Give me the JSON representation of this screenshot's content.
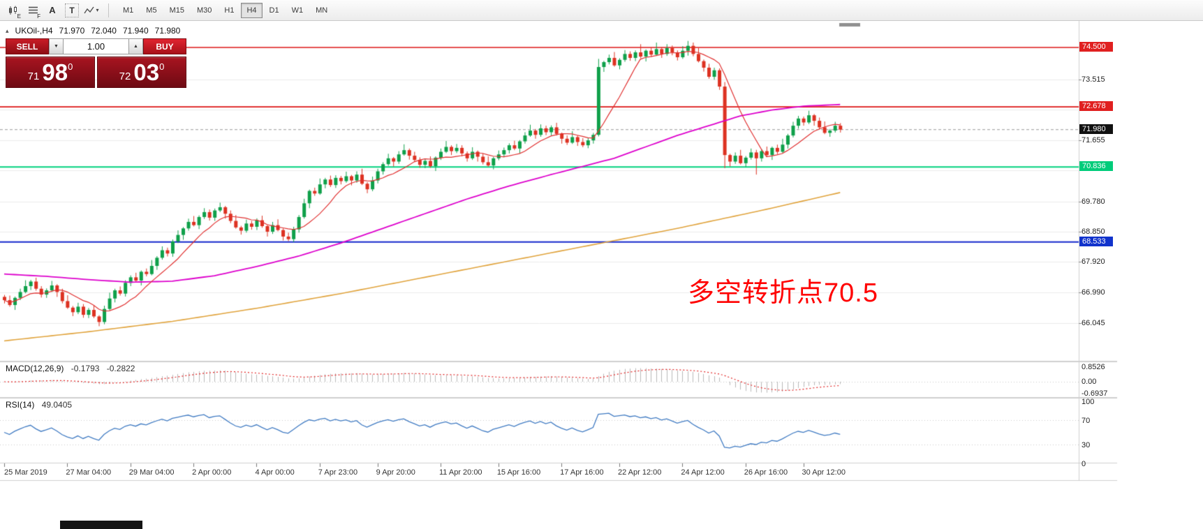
{
  "toolbar": {
    "timeframes": [
      "M1",
      "M5",
      "M15",
      "M30",
      "H1",
      "H4",
      "D1",
      "W1",
      "MN"
    ],
    "active_timeframe": "H4",
    "tools": {
      "tool1_sub": "E",
      "tool2_sub": "F",
      "tool3_label": "A",
      "tool4_label": "T",
      "tool5_caret": "▾"
    }
  },
  "symbol": {
    "prefix_icon": "▴",
    "name": "UKOil-,H4",
    "open": "71.970",
    "high": "72.040",
    "low": "71.940",
    "close": "71.980"
  },
  "trade_panel": {
    "sell_label": "SELL",
    "buy_label": "BUY",
    "volume": "1.00",
    "dropdown_icon": "▼",
    "spin_up_icon": "▲",
    "bid": {
      "whole": "71",
      "pips": "98",
      "pt": "0"
    },
    "ask": {
      "whole": "72",
      "pips": "03",
      "pt": "0"
    }
  },
  "chart_data": {
    "type": "candlestick",
    "symbol": "UKOil-",
    "timeframe": "H4",
    "first_open": 66.85,
    "closes": [
      66.75,
      66.6,
      66.82,
      67.0,
      67.18,
      67.32,
      67.1,
      66.92,
      67.05,
      67.2,
      67.0,
      66.72,
      66.52,
      66.38,
      66.55,
      66.3,
      66.45,
      66.25,
      66.08,
      66.48,
      66.8,
      67.05,
      66.95,
      67.28,
      67.45,
      67.35,
      67.62,
      67.55,
      67.8,
      68.05,
      68.28,
      68.18,
      68.55,
      68.75,
      68.95,
      69.15,
      69.05,
      69.3,
      69.45,
      69.28,
      69.5,
      69.6,
      69.4,
      69.18,
      68.98,
      68.88,
      69.1,
      69.0,
      69.2,
      69.02,
      68.85,
      69.05,
      68.9,
      68.7,
      68.62,
      68.92,
      69.3,
      69.72,
      70.1,
      70.02,
      70.3,
      70.45,
      70.28,
      70.5,
      70.4,
      70.55,
      70.42,
      70.6,
      70.32,
      70.15,
      70.42,
      70.7,
      70.92,
      71.1,
      71.0,
      71.22,
      71.35,
      71.18,
      71.05,
      70.9,
      71.02,
      70.86,
      71.12,
      71.3,
      71.45,
      71.32,
      71.42,
      71.25,
      71.1,
      71.3,
      71.15,
      70.98,
      70.88,
      71.1,
      71.22,
      71.35,
      71.5,
      71.4,
      71.62,
      71.8,
      71.95,
      71.82,
      72.02,
      71.9,
      72.05,
      71.85,
      71.7,
      71.58,
      71.75,
      71.6,
      71.5,
      71.65,
      71.82,
      73.9,
      74.05,
      74.18,
      73.95,
      74.12,
      74.3,
      74.18,
      74.35,
      74.22,
      74.4,
      74.28,
      74.45,
      74.3,
      74.48,
      74.35,
      74.2,
      74.4,
      74.55,
      74.3,
      74.08,
      73.88,
      73.6,
      73.8,
      73.3,
      71.2,
      71.0,
      71.18,
      70.95,
      71.12,
      71.28,
      71.1,
      71.32,
      71.2,
      71.42,
      71.3,
      71.52,
      71.8,
      72.1,
      72.32,
      72.2,
      72.42,
      72.25,
      72.05,
      71.88,
      71.95,
      72.1,
      71.98
    ],
    "wick_high": [
      0.06,
      0.14,
      0.04,
      0.1,
      0.18,
      0.05,
      0.12,
      0.08
    ],
    "wick_low": [
      0.1,
      0.05,
      0.15,
      0.07,
      0.04,
      0.12,
      0.06,
      0.09
    ],
    "wick_overrides": {
      "18": {
        "low": 65.95
      },
      "113": {
        "high": 74.15
      },
      "121": {
        "high": 74.6
      },
      "124": {
        "high": 74.65
      },
      "130": {
        "high": 74.7
      },
      "137": {
        "low": 70.8
      },
      "143": {
        "low": 70.6
      }
    },
    "up_color": "#0fa04a",
    "down_color": "#dd3222",
    "grid_prices": [
      73.515,
      72.585,
      71.655,
      70.725,
      69.78,
      68.85,
      67.92,
      66.99,
      66.045
    ],
    "hlines": [
      {
        "p": 74.5,
        "color": "#dd1414",
        "w": 1.6
      },
      {
        "p": 72.678,
        "color": "#dd1414",
        "w": 1.6
      },
      {
        "p": 71.98,
        "color": "#999999",
        "w": 1,
        "dash": [
          4,
          3
        ]
      },
      {
        "p": 70.836,
        "color": "#00d17e",
        "w": 2
      },
      {
        "p": 68.533,
        "color": "#1628cc",
        "w": 2
      }
    ],
    "ma_fast": {
      "color": "#e03030",
      "period": 9
    },
    "ma_magenta": {
      "color": "#dd00cc",
      "points": [
        [
          0,
          67.55
        ],
        [
          8,
          67.48
        ],
        [
          16,
          67.38
        ],
        [
          24,
          67.3
        ],
        [
          32,
          67.33
        ],
        [
          40,
          67.5
        ],
        [
          48,
          67.78
        ],
        [
          56,
          68.1
        ],
        [
          64,
          68.5
        ],
        [
          72,
          68.95
        ],
        [
          80,
          69.4
        ],
        [
          88,
          69.85
        ],
        [
          96,
          70.25
        ],
        [
          104,
          70.6
        ],
        [
          110,
          70.85
        ],
        [
          116,
          71.1
        ],
        [
          122,
          71.45
        ],
        [
          128,
          71.8
        ],
        [
          134,
          72.1
        ],
        [
          140,
          72.4
        ],
        [
          146,
          72.58
        ],
        [
          152,
          72.7
        ],
        [
          159,
          72.75
        ]
      ]
    },
    "ma_gold": {
      "color": "#e0a33c",
      "points": [
        [
          0,
          65.5
        ],
        [
          16,
          65.78
        ],
        [
          32,
          66.1
        ],
        [
          48,
          66.5
        ],
        [
          64,
          66.95
        ],
        [
          80,
          67.45
        ],
        [
          96,
          67.95
        ],
        [
          112,
          68.45
        ],
        [
          128,
          68.95
        ],
        [
          144,
          69.5
        ],
        [
          159,
          70.05
        ]
      ]
    },
    "price_scale_labels": [
      {
        "t": "73.515",
        "p": 73.515
      },
      {
        "t": "71.655",
        "p": 71.655
      },
      {
        "t": "69.780",
        "p": 69.78
      },
      {
        "t": "68.850",
        "p": 68.85
      },
      {
        "t": "67.920",
        "p": 67.92
      },
      {
        "t": "66.990",
        "p": 66.99
      },
      {
        "t": "66.045",
        "p": 66.045
      }
    ],
    "price_badges": [
      {
        "t": "74.500",
        "p": 74.5,
        "bg": "#e02020"
      },
      {
        "t": "72.678",
        "p": 72.678,
        "bg": "#e02020"
      },
      {
        "t": "71.980",
        "p": 71.98,
        "bg": "#111111"
      },
      {
        "t": "70.836",
        "p": 70.836,
        "bg": "#00cc7a"
      },
      {
        "t": "68.533",
        "p": 68.533,
        "bg": "#1133cc"
      }
    ],
    "time_labels": [
      {
        "t": "25 Mar 2019",
        "i": 0
      },
      {
        "t": "27 Mar 04:00",
        "i": 12
      },
      {
        "t": "29 Mar 04:00",
        "i": 24
      },
      {
        "t": "2 Apr 00:00",
        "i": 36
      },
      {
        "t": "4 Apr 00:00",
        "i": 48
      },
      {
        "t": "7 Apr 23:00",
        "i": 60
      },
      {
        "t": "9 Apr 20:00",
        "i": 71
      },
      {
        "t": "11 Apr 20:00",
        "i": 83
      },
      {
        "t": "15 Apr 16:00",
        "i": 94
      },
      {
        "t": "17 Apr 16:00",
        "i": 106
      },
      {
        "t": "22 Apr 12:00",
        "i": 117
      },
      {
        "t": "24 Apr 12:00",
        "i": 129
      },
      {
        "t": "26 Apr 16:00",
        "i": 141
      },
      {
        "t": "30 Apr 12:00",
        "i": 152
      }
    ],
    "annotation": {
      "text": "多空转折点70.5",
      "color": "#ff0000"
    }
  },
  "macd": {
    "title": "MACD(12,26,9)",
    "value_main": "-0.1793",
    "value_signal": "-0.2822",
    "axis": [
      {
        "t": "0.8526",
        "v": 0.8526
      },
      {
        "t": "0.00",
        "v": 0
      },
      {
        "t": "-0.6937",
        "v": -0.6937
      }
    ],
    "hist_color": "#b8b8b8",
    "signal_color": "#e02020"
  },
  "rsi": {
    "title": "RSI(14)",
    "value": "49.0405",
    "axis": [
      {
        "t": "100",
        "v": 100
      },
      {
        "t": "70",
        "v": 70
      },
      {
        "t": "30",
        "v": 30
      },
      {
        "t": "0",
        "v": 0
      }
    ],
    "line_color": "#3f7ac2",
    "levels": [
      70,
      30
    ]
  }
}
